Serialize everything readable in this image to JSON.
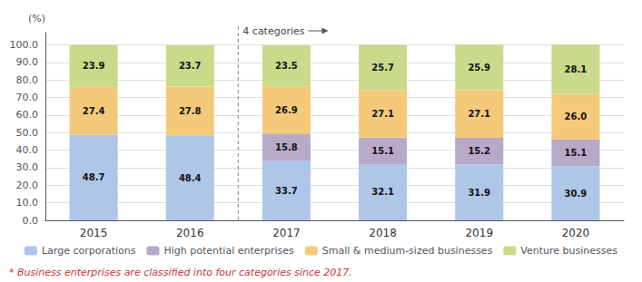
{
  "chart_data": {
    "type": "bar",
    "stacked": true,
    "data_labels": true,
    "grid": true,
    "legend": "bottom",
    "y_label": "(%)",
    "categories": [
      "2015",
      "2016",
      "2017",
      "2018",
      "2019",
      "2020"
    ],
    "series": [
      {
        "name": "Large corporations",
        "color": "#aec6e8",
        "values": [
          48.7,
          48.4,
          33.7,
          32.1,
          31.9,
          30.9
        ]
      },
      {
        "name": "High potential enterprises",
        "color": "#b8a9c9",
        "values": [
          0.0,
          0.0,
          15.8,
          15.1,
          15.2,
          15.1
        ],
        "value_labels": [
          null,
          null,
          "15.8",
          "15.1",
          "15.2",
          "15.1"
        ]
      },
      {
        "name": "Small & medium-sized businesses",
        "color": "#f5c97a",
        "values": [
          27.4,
          27.8,
          26.9,
          27.1,
          27.1,
          26.0
        ],
        "value_labels": [
          "27.4",
          "27.8",
          "26.9",
          "27.1",
          "27.1",
          "26.0"
        ]
      },
      {
        "name": "Venture businesses",
        "color": "#c9db8a",
        "values": [
          23.9,
          23.7,
          23.5,
          25.7,
          25.9,
          28.1
        ]
      }
    ],
    "ylim": [
      0,
      107
    ],
    "yticks": [
      {
        "value": 0,
        "label": "0.0"
      },
      {
        "value": 10,
        "label": "10.0"
      },
      {
        "value": 20,
        "label": "20.0"
      },
      {
        "value": 30,
        "label": "30.0"
      },
      {
        "value": 40,
        "label": "40.0"
      },
      {
        "value": 50,
        "label": "50.0"
      },
      {
        "value": 60,
        "label": "60.0"
      },
      {
        "value": 70,
        "label": "70.0"
      },
      {
        "value": 80,
        "label": "80.0"
      },
      {
        "value": 90,
        "label": "90.0"
      },
      {
        "value": 100,
        "label": "100.0"
      }
    ],
    "annotations": [
      {
        "text": "4 categories",
        "x": "2017"
      },
      {
        "text": "* Business enterprises are classified into four categories since 2017.",
        "color": "#cc3333"
      }
    ]
  }
}
